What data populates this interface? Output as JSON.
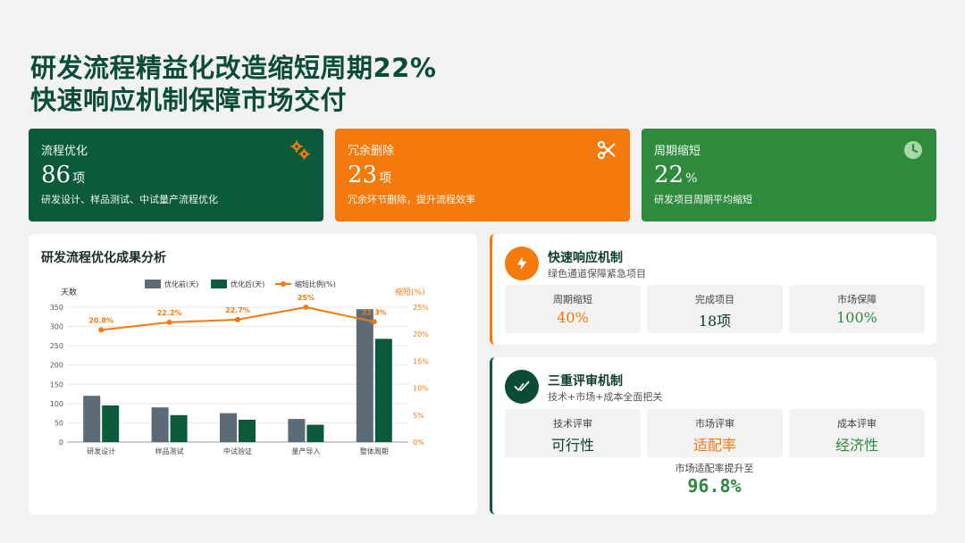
{
  "header": {
    "title_line1": "研发流程精益化改造缩短周期22%",
    "title_line2": "快速响应机制保障市场交付"
  },
  "kpis": [
    {
      "label": "流程优化",
      "value": "86",
      "unit": "项",
      "desc": "研发设计、样品测试、中试量产流程优化",
      "icon": "gears-icon",
      "color": "#0b5a3c"
    },
    {
      "label": "冗余删除",
      "value": "23",
      "unit": "项",
      "desc": "冗余环节删除，提升流程效率",
      "icon": "scissors-icon",
      "color": "#f47a0d"
    },
    {
      "label": "周期缩短",
      "value": "22",
      "unit": "%",
      "desc": "研发项目周期平均缩短",
      "icon": "clock-icon",
      "color": "#2e8a3c"
    }
  ],
  "chart_panel": {
    "title": "研发流程优化成果分析"
  },
  "chart_data": {
    "type": "bar",
    "categories": [
      "研发设计",
      "样品测试",
      "中试验证",
      "量产导入",
      "整体周期"
    ],
    "series": [
      {
        "name": "优化前(天)",
        "type": "bar",
        "axis": "left",
        "values": [
          120,
          90,
          75,
          60,
          345
        ],
        "color": "#5b6b78"
      },
      {
        "name": "优化后(天)",
        "type": "bar",
        "axis": "left",
        "values": [
          95,
          70,
          58,
          45,
          268
        ],
        "color": "#0b5a3c"
      },
      {
        "name": "缩短比例(%)",
        "type": "line",
        "axis": "right",
        "values": [
          20.8,
          22.2,
          22.7,
          25,
          22.3
        ],
        "color": "#f47a0d"
      }
    ],
    "data_labels": [
      "20.8%",
      "22.2%",
      "22.7%",
      "25%",
      "22.3%"
    ],
    "ylabel_left": "天数",
    "ylabel_right": "缩短(%)",
    "ylim_left": [
      0,
      350
    ],
    "ylim_right": [
      0,
      25
    ],
    "yticks_left": [
      "0",
      "50",
      "100",
      "150",
      "200",
      "250",
      "300",
      "350"
    ],
    "yticks_right": [
      "0%",
      "5%",
      "10%",
      "15%",
      "20%",
      "25%"
    ],
    "legend_position": "top-center",
    "grid": true
  },
  "card_response": {
    "title": "快速响应机制",
    "subtitle": "绿色通道保障紧急项目",
    "icon": "lightning-icon",
    "metrics": [
      {
        "label": "周期缩短",
        "value": "40%",
        "color": "#f47a0d"
      },
      {
        "label": "完成项目",
        "value": "18项",
        "color": "#0b3d2a"
      },
      {
        "label": "市场保障",
        "value": "100%",
        "color": "#2e8a3c"
      }
    ]
  },
  "card_review": {
    "title": "三重评审机制",
    "subtitle": "技术+市场+成本全面把关",
    "icon": "check-icon",
    "metrics": [
      {
        "label": "技术评审",
        "value": "可行性",
        "color": "#0b3d2a"
      },
      {
        "label": "市场评审",
        "value": "适配率",
        "color": "#f47a0d"
      },
      {
        "label": "成本评审",
        "value": "经济性",
        "color": "#2e8a3c"
      }
    ],
    "final_label": "市场适配率提升至",
    "final_value": "96.8%"
  }
}
